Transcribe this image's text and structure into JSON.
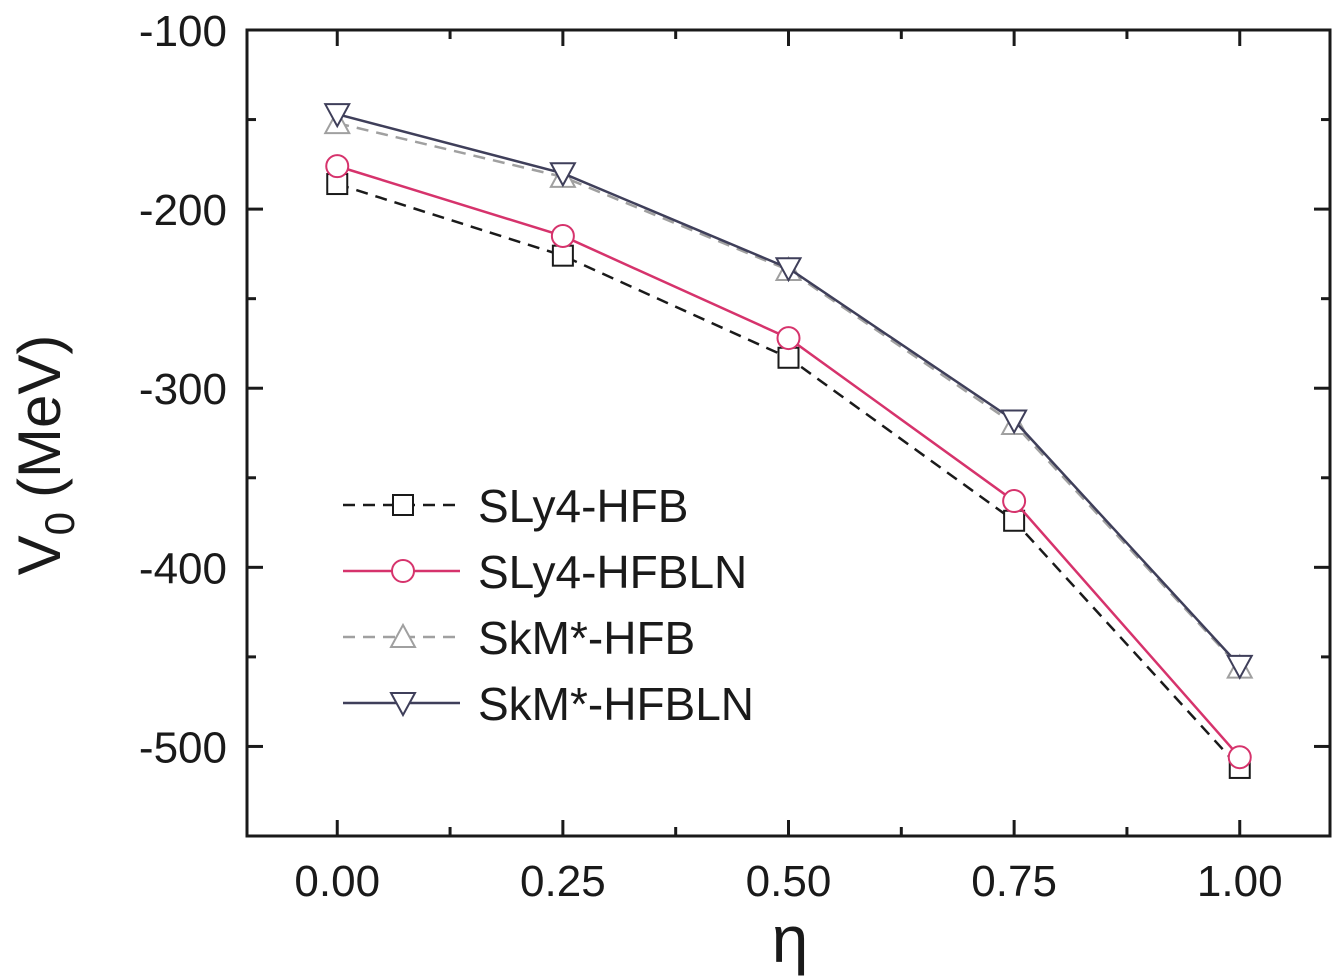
{
  "chart_data": {
    "type": "line",
    "xlabel": "η",
    "ylabel_main": "V",
    "ylabel_sub": "0",
    "ylabel_unit": "(MeV)",
    "xlim": [
      -0.1,
      1.1
    ],
    "ylim": [
      -550,
      -100
    ],
    "x_ticks": [
      0.0,
      0.25,
      0.5,
      0.75,
      1.0
    ],
    "x_tick_labels": [
      "0.00",
      "0.25",
      "0.50",
      "0.75",
      "1.00"
    ],
    "y_ticks": [
      -100,
      -200,
      -300,
      -400,
      -500
    ],
    "y_tick_labels": [
      "-100",
      "-200",
      "-300",
      "-400",
      "-500"
    ],
    "x_minor_ticks": [
      -0.125,
      0.125,
      0.375,
      0.625,
      0.875,
      1.125
    ],
    "y_minor_ticks": [
      -150,
      -250,
      -350,
      -450,
      -550
    ],
    "grid": false,
    "legend_position": "lower-left",
    "x": [
      0.0,
      0.25,
      0.5,
      0.75,
      1.0
    ],
    "series": [
      {
        "name": "SLy4-HFB",
        "values": [
          -186,
          -226,
          -283,
          -374,
          -512
        ],
        "color": "#1a1a1a",
        "dash": "dashed",
        "marker": "square"
      },
      {
        "name": "SLy4-HFBLN",
        "values": [
          -176,
          -215,
          -272,
          -363,
          -506
        ],
        "color": "#d6336c",
        "dash": "solid",
        "marker": "circle"
      },
      {
        "name": "SkM*-HFB",
        "values": [
          -152,
          -182,
          -234,
          -320,
          -456
        ],
        "color": "#a0a0a0",
        "dash": "dashed",
        "marker": "triangle-up"
      },
      {
        "name": "SkM*-HFBLN",
        "values": [
          -147,
          -180,
          -233,
          -318,
          -455
        ],
        "color": "#3f3f5a",
        "dash": "solid",
        "marker": "triangle-down"
      }
    ]
  }
}
